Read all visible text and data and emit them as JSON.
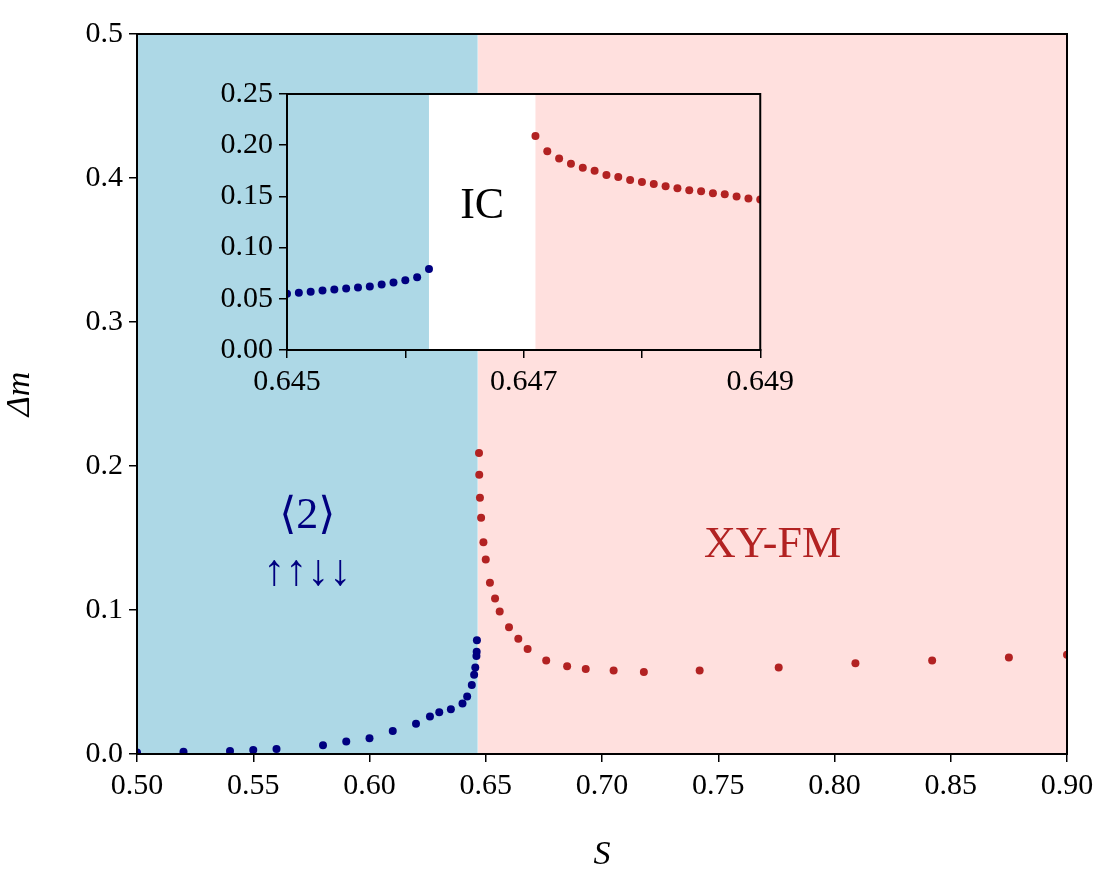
{
  "chart_data": [
    {
      "type": "scatter",
      "xlabel": "S",
      "ylabel": "Δm",
      "marker": "circle",
      "xlim": [
        0.5,
        0.9
      ],
      "ylim": [
        0,
        0.5
      ],
      "xticks": [
        {
          "value": 0.5,
          "label": "0.50"
        },
        {
          "value": 0.55,
          "label": "0.55"
        },
        {
          "value": 0.6,
          "label": "0.60"
        },
        {
          "value": 0.65,
          "label": "0.65"
        },
        {
          "value": 0.7,
          "label": "0.70"
        },
        {
          "value": 0.75,
          "label": "0.75"
        },
        {
          "value": 0.8,
          "label": "0.80"
        },
        {
          "value": 0.85,
          "label": "0.85"
        },
        {
          "value": 0.9,
          "label": "0.90"
        }
      ],
      "yticks": [
        {
          "value": 0,
          "label": "0.0"
        },
        {
          "value": 0.1,
          "label": "0.1"
        },
        {
          "value": 0.2,
          "label": "0.2"
        },
        {
          "value": 0.3,
          "label": "0.3"
        },
        {
          "value": 0.4,
          "label": "0.4"
        },
        {
          "value": 0.5,
          "label": "0.5"
        }
      ],
      "bands": [
        {
          "axis": "x",
          "from": 0.5,
          "to": 0.6465,
          "color": "#add8e6",
          "label": "⟨2⟩\n↑↑↓↓"
        },
        {
          "axis": "x",
          "from": 0.6467,
          "to": 0.9,
          "color": "#ffe0de",
          "label": "XY-FM"
        }
      ],
      "series": [
        {
          "color": "#000080",
          "x": [
            0.5,
            0.52,
            0.54,
            0.55,
            0.56,
            0.58,
            0.59,
            0.6,
            0.61,
            0.62,
            0.626,
            0.63,
            0.635,
            0.64,
            0.642,
            0.644,
            0.645,
            0.6455,
            0.646,
            0.6461,
            0.6462
          ],
          "values": [
            0.001,
            0.0015,
            0.002,
            0.0028,
            0.0035,
            0.006,
            0.0086,
            0.011,
            0.016,
            0.021,
            0.026,
            0.029,
            0.031,
            0.035,
            0.04,
            0.048,
            0.055,
            0.06,
            0.068,
            0.071,
            0.079
          ]
        },
        {
          "color": "#b22222",
          "x": [
            0.6471,
            0.6472,
            0.6475,
            0.648,
            0.649,
            0.65,
            0.6518,
            0.654,
            0.656,
            0.66,
            0.664,
            0.668,
            0.676,
            0.685,
            0.693,
            0.705,
            0.718,
            0.742,
            0.776,
            0.809,
            0.842,
            0.875,
            0.9
          ],
          "values": [
            0.209,
            0.194,
            0.178,
            0.164,
            0.147,
            0.135,
            0.119,
            0.108,
            0.099,
            0.088,
            0.08,
            0.073,
            0.065,
            0.061,
            0.059,
            0.058,
            0.057,
            0.058,
            0.06,
            0.063,
            0.065,
            0.067,
            0.069
          ]
        }
      ],
      "tick_labels": "xy"
    },
    {
      "type": "scatter",
      "marker": "circle",
      "xlim": [
        0.645,
        0.649
      ],
      "ylim": [
        0,
        0.25
      ],
      "xticks": [
        0.645,
        {
          "value": 0.646,
          "label": null
        },
        0.647,
        {
          "value": 0.648,
          "label": null
        },
        0.649
      ],
      "yticks": [
        {
          "value": 0,
          "label": "0.00"
        },
        {
          "value": 0.05,
          "label": "0.05"
        },
        {
          "value": 0.1,
          "label": "0.10"
        },
        {
          "value": 0.15,
          "label": "0.15"
        },
        {
          "value": 0.2,
          "label": "0.20"
        },
        {
          "value": 0.25,
          "label": "0.25"
        }
      ],
      "bands": [
        {
          "axis": "x",
          "from": 0.645,
          "to": 0.6462,
          "color": "#add8e6"
        },
        {
          "axis": "x",
          "from": 0.6471,
          "to": 0.649,
          "color": "#ffe0de"
        }
      ],
      "series": [
        {
          "color": "#000080",
          "x": [
            0.645,
            0.6451,
            0.6452,
            0.6453,
            0.6454,
            0.6455,
            0.6456,
            0.6457,
            0.6458,
            0.6459,
            0.646,
            0.6461,
            0.6462
          ],
          "values": [
            0.055,
            0.056,
            0.057,
            0.058,
            0.059,
            0.06,
            0.061,
            0.062,
            0.064,
            0.066,
            0.068,
            0.071,
            0.079
          ]
        },
        {
          "color": "#b22222",
          "x": [
            0.6471,
            0.6472,
            0.6473,
            0.6474,
            0.6475,
            0.6476,
            0.6477,
            0.6478,
            0.6479,
            0.648,
            0.6481,
            0.6482,
            0.6483,
            0.6484,
            0.6485,
            0.6486,
            0.6487,
            0.6488,
            0.6489,
            0.649
          ],
          "values": [
            0.209,
            0.194,
            0.187,
            0.182,
            0.178,
            0.175,
            0.171,
            0.169,
            0.166,
            0.164,
            0.162,
            0.16,
            0.158,
            0.156,
            0.155,
            0.153,
            0.152,
            0.15,
            0.148,
            0.147
          ]
        }
      ],
      "annotations": [
        "IC"
      ]
    }
  ]
}
